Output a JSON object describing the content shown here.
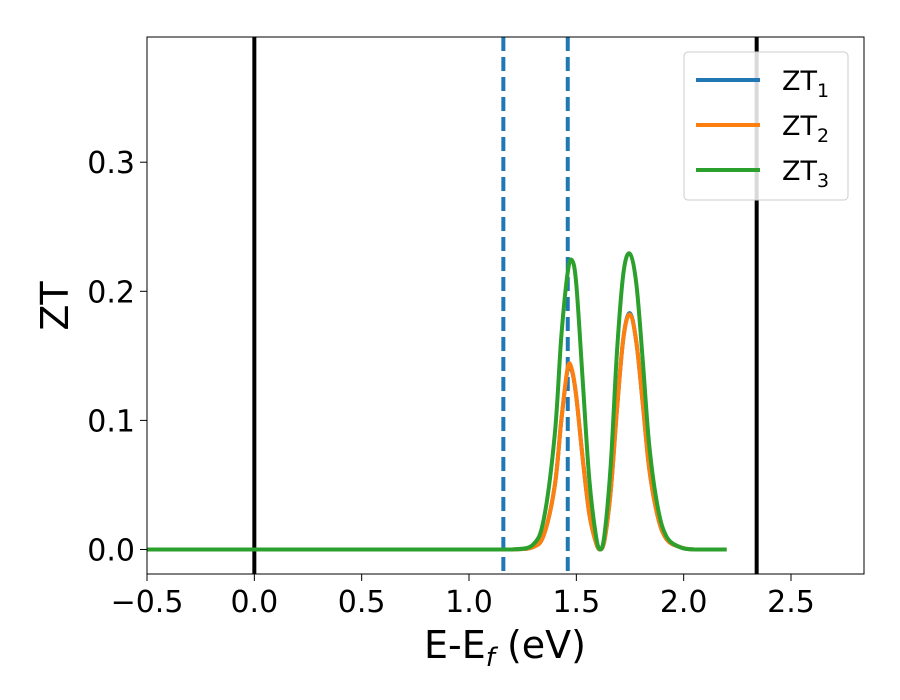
{
  "chart_data": {
    "type": "line",
    "xlabel": "E-E",
    "xlabel_sub": "f",
    "xlabel_unit": " (eV)",
    "ylabel": "ZT",
    "xlim": [
      -0.5,
      2.84
    ],
    "ylim": [
      -0.019,
      0.397
    ],
    "xticks": [
      -0.5,
      0.0,
      0.5,
      1.0,
      1.5,
      2.0,
      2.5
    ],
    "xtick_labels": [
      "−0.5",
      "0.0",
      "0.5",
      "1.0",
      "1.5",
      "2.0",
      "2.5"
    ],
    "yticks": [
      0.0,
      0.1,
      0.2,
      0.3
    ],
    "ytick_labels": [
      "0.0",
      "0.1",
      "0.2",
      "0.3"
    ],
    "grid": false,
    "legend_position": "top-right",
    "vertical_lines": [
      {
        "x": 0.0,
        "style": "solid",
        "color": "#000000"
      },
      {
        "x": 2.34,
        "style": "solid",
        "color": "#000000"
      },
      {
        "x": 1.16,
        "style": "dashed",
        "color": "#1f77b4"
      },
      {
        "x": 1.46,
        "style": "dashed",
        "color": "#1f77b4"
      }
    ],
    "series": [
      {
        "name": "ZT",
        "name_sub": "1",
        "color": "#1f77b4",
        "x": [
          -0.5,
          0.0,
          0.5,
          1.0,
          1.2,
          1.3,
          1.35,
          1.4,
          1.43,
          1.46,
          1.48,
          1.5,
          1.53,
          1.56,
          1.59,
          1.61,
          1.63,
          1.66,
          1.69,
          1.72,
          1.75,
          1.78,
          1.81,
          1.84,
          1.88,
          1.92,
          1.98,
          2.05,
          2.2
        ],
        "y": [
          0.0,
          0.0,
          0.0,
          0.0,
          0.0,
          0.002,
          0.012,
          0.05,
          0.1,
          0.14,
          0.138,
          0.118,
          0.07,
          0.028,
          0.006,
          0.0,
          0.006,
          0.045,
          0.11,
          0.165,
          0.183,
          0.16,
          0.112,
          0.062,
          0.025,
          0.008,
          0.002,
          0.0,
          0.0
        ]
      },
      {
        "name": "ZT",
        "name_sub": "2",
        "color": "#ff7f0e",
        "x": [
          -0.5,
          0.0,
          0.5,
          1.0,
          1.2,
          1.3,
          1.35,
          1.4,
          1.43,
          1.46,
          1.48,
          1.5,
          1.53,
          1.56,
          1.59,
          1.61,
          1.63,
          1.66,
          1.69,
          1.72,
          1.75,
          1.78,
          1.81,
          1.84,
          1.88,
          1.92,
          1.98,
          2.05,
          2.2
        ],
        "y": [
          0.0,
          0.0,
          0.0,
          0.0,
          0.0,
          0.002,
          0.012,
          0.05,
          0.1,
          0.141,
          0.139,
          0.118,
          0.07,
          0.028,
          0.006,
          0.0,
          0.006,
          0.045,
          0.11,
          0.165,
          0.182,
          0.16,
          0.112,
          0.062,
          0.025,
          0.008,
          0.002,
          0.0,
          0.0
        ]
      },
      {
        "name": "ZT",
        "name_sub": "3",
        "color": "#2ca02c",
        "x": [
          -0.5,
          0.0,
          0.5,
          1.0,
          1.2,
          1.3,
          1.35,
          1.4,
          1.43,
          1.46,
          1.48,
          1.5,
          1.53,
          1.56,
          1.59,
          1.61,
          1.63,
          1.66,
          1.69,
          1.72,
          1.75,
          1.78,
          1.81,
          1.84,
          1.88,
          1.92,
          1.98,
          2.05,
          2.2
        ],
        "y": [
          0.0,
          0.0,
          0.0,
          0.0,
          0.0,
          0.004,
          0.025,
          0.09,
          0.165,
          0.215,
          0.224,
          0.205,
          0.13,
          0.055,
          0.012,
          0.0,
          0.01,
          0.065,
          0.155,
          0.215,
          0.229,
          0.205,
          0.145,
          0.08,
          0.032,
          0.01,
          0.002,
          0.0,
          0.0
        ]
      }
    ]
  }
}
